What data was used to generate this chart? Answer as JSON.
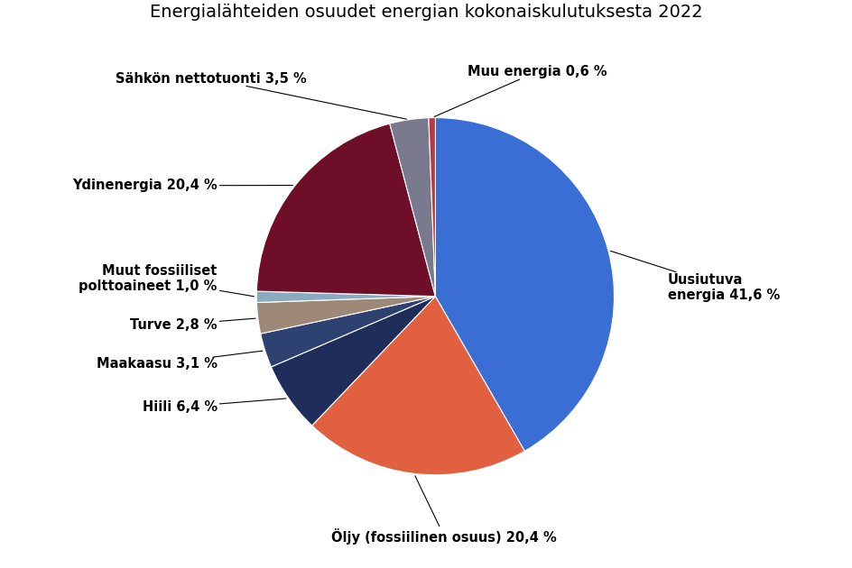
{
  "title": "Energialähteiden osuudet energian kokonaiskulutuksesta 2022",
  "slices": [
    {
      "label": "Uusiutuva\nenergia 41,6 %",
      "value": 41.6,
      "color": "#3B6ED4"
    },
    {
      "label": "Öljy (fossiilinen osuus) 20,4 %",
      "value": 20.4,
      "color": "#E06040"
    },
    {
      "label": "Hiili 6,4 %",
      "value": 6.4,
      "color": "#1E2D5A"
    },
    {
      "label": "Maakaasu 3,1 %",
      "value": 3.1,
      "color": "#2E4272"
    },
    {
      "label": "Turve 2,8 %",
      "value": 2.8,
      "color": "#9E8878"
    },
    {
      "label": "Muut fossiiliset\npolttoaineet 1,0 %",
      "value": 1.0,
      "color": "#8AAAC0"
    },
    {
      "label": "Ydinenergia 20,4 %",
      "value": 20.4,
      "color": "#6E0E28"
    },
    {
      "label": "Sähkön nettotuonti 3,5 %",
      "value": 3.5,
      "color": "#7A7A8E"
    },
    {
      "label": "Muu energia 0,6 %",
      "value": 0.6,
      "color": "#B83848"
    }
  ],
  "background_color": "#FFFFFF",
  "title_fontsize": 14,
  "label_fontsize": 10.5
}
